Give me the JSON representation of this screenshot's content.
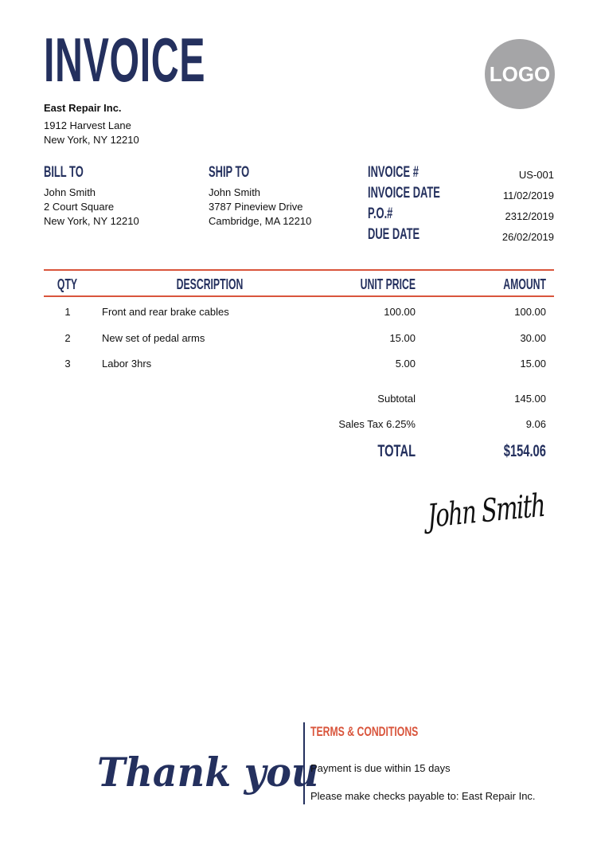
{
  "header": {
    "title": "INVOICE",
    "logo": "LOGO"
  },
  "company": {
    "name": "East Repair Inc.",
    "address1": "1912 Harvest Lane",
    "address2": "New York, NY 12210"
  },
  "bill_to": {
    "label": "BILL TO",
    "name": "John Smith",
    "address1": "2 Court Square",
    "address2": "New York, NY 12210"
  },
  "ship_to": {
    "label": "SHIP TO",
    "name": "John Smith",
    "address1": "3787 Pineview Drive",
    "address2": "Cambridge, MA 12210"
  },
  "meta": [
    {
      "label": "INVOICE #",
      "value": "US-001"
    },
    {
      "label": "INVOICE DATE",
      "value": "11/02/2019"
    },
    {
      "label": "P.O.#",
      "value": "2312/2019"
    },
    {
      "label": "DUE DATE",
      "value": "26/02/2019"
    }
  ],
  "table": {
    "headers": {
      "qty": "QTY",
      "description": "DESCRIPTION",
      "unit_price": "UNIT PRICE",
      "amount": "AMOUNT"
    },
    "rows": [
      {
        "qty": "1",
        "description": "Front and rear brake cables",
        "unit_price": "100.00",
        "amount": "100.00"
      },
      {
        "qty": "2",
        "description": "New set of pedal arms",
        "unit_price": "15.00",
        "amount": "30.00"
      },
      {
        "qty": "3",
        "description": "Labor 3hrs",
        "unit_price": "5.00",
        "amount": "15.00"
      }
    ]
  },
  "totals": {
    "subtotal_label": "Subtotal",
    "subtotal": "145.00",
    "tax_label": "Sales Tax 6.25%",
    "tax": "9.06",
    "total_label": "TOTAL",
    "total": "$154.06"
  },
  "signature": "John Smith",
  "footer": {
    "thank_you": "Thank you",
    "terms_title": "TERMS & CONDITIONS",
    "terms1": "Payment is due within 15 days",
    "terms2": "Please make checks payable to: East Repair Inc."
  },
  "colors": {
    "navy": "#24305e",
    "accent": "#d9553c",
    "logo_bg": "#a5a5a7"
  }
}
